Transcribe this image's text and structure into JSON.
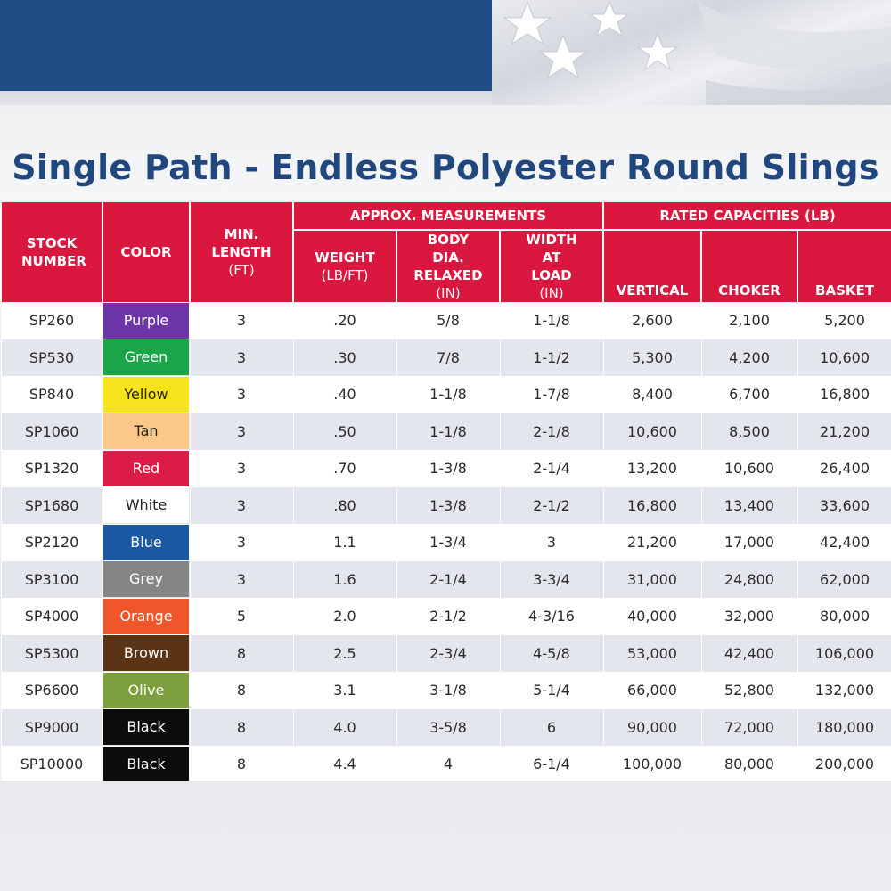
{
  "title": "Single Path - Endless Polyester Round Slings",
  "header": {
    "stock_number": "STOCK NUMBER",
    "color": "COLOR",
    "min_length": "MIN. LENGTH",
    "min_length_unit": "(FT)",
    "approx_group": "APPROX. MEASUREMENTS",
    "weight": "WEIGHT",
    "weight_unit": "(LB/FT)",
    "body_dia": "BODY DIA. RELAXED",
    "body_dia_unit": "(IN)",
    "width_load": "WIDTH AT LOAD",
    "width_load_unit": "(IN)",
    "rated_group": "RATED CAPACITIES (LB)",
    "vertical": "VERTICAL",
    "choker": "CHOKER",
    "basket": "BASKET"
  },
  "rows": [
    {
      "stock": "SP260",
      "color": "Purple",
      "swatch": "#6c35a8",
      "text_color": "#ffffff",
      "length": "3",
      "weight": ".20",
      "body": "5/8",
      "width": "1-1/8",
      "vertical": "2,600",
      "choker": "2,100",
      "basket": "5,200"
    },
    {
      "stock": "SP530",
      "color": "Green",
      "swatch": "#1aa648",
      "text_color": "#ffffff",
      "length": "3",
      "weight": ".30",
      "body": "7/8",
      "width": "1-1/2",
      "vertical": "5,300",
      "choker": "4,200",
      "basket": "10,600"
    },
    {
      "stock": "SP840",
      "color": "Yellow",
      "swatch": "#f7e31b",
      "text_color": "#222222",
      "length": "3",
      "weight": ".40",
      "body": "1-1/8",
      "width": "1-7/8",
      "vertical": "8,400",
      "choker": "6,700",
      "basket": "16,800"
    },
    {
      "stock": "SP1060",
      "color": "Tan",
      "swatch": "#fbc88a",
      "text_color": "#222222",
      "length": "3",
      "weight": ".50",
      "body": "1-1/8",
      "width": "2-1/8",
      "vertical": "10,600",
      "choker": "8,500",
      "basket": "21,200"
    },
    {
      "stock": "SP1320",
      "color": "Red",
      "swatch": "#dc1c46",
      "text_color": "#ffffff",
      "length": "3",
      "weight": ".70",
      "body": "1-3/8",
      "width": "2-1/4",
      "vertical": "13,200",
      "choker": "10,600",
      "basket": "26,400"
    },
    {
      "stock": "SP1680",
      "color": "White",
      "swatch": "#ffffff",
      "text_color": "#222222",
      "length": "3",
      "weight": ".80",
      "body": "1-3/8",
      "width": "2-1/2",
      "vertical": "16,800",
      "choker": "13,400",
      "basket": "33,600"
    },
    {
      "stock": "SP2120",
      "color": "Blue",
      "swatch": "#1b5aa2",
      "text_color": "#ffffff",
      "length": "3",
      "weight": "1.1",
      "body": "1-3/4",
      "width": "3",
      "vertical": "21,200",
      "choker": "17,000",
      "basket": "42,400"
    },
    {
      "stock": "SP3100",
      "color": "Grey",
      "swatch": "#858585",
      "text_color": "#ffffff",
      "length": "3",
      "weight": "1.6",
      "body": "2-1/4",
      "width": "3-3/4",
      "vertical": "31,000",
      "choker": "24,800",
      "basket": "62,000"
    },
    {
      "stock": "SP4000",
      "color": "Orange",
      "swatch": "#f0562a",
      "text_color": "#ffffff",
      "length": "5",
      "weight": "2.0",
      "body": "2-1/2",
      "width": "4-3/16",
      "vertical": "40,000",
      "choker": "32,000",
      "basket": "80,000"
    },
    {
      "stock": "SP5300",
      "color": "Brown",
      "swatch": "#5b3416",
      "text_color": "#ffffff",
      "length": "8",
      "weight": "2.5",
      "body": "2-3/4",
      "width": "4-5/8",
      "vertical": "53,000",
      "choker": "42,400",
      "basket": "106,000"
    },
    {
      "stock": "SP6600",
      "color": "Olive",
      "swatch": "#7c9e3c",
      "text_color": "#ffffff",
      "length": "8",
      "weight": "3.1",
      "body": "3-1/8",
      "width": "5-1/4",
      "vertical": "66,000",
      "choker": "52,800",
      "basket": "132,000"
    },
    {
      "stock": "SP9000",
      "color": "Black",
      "swatch": "#0c0c0c",
      "text_color": "#ffffff",
      "length": "8",
      "weight": "4.0",
      "body": "3-5/8",
      "width": "6",
      "vertical": "90,000",
      "choker": "72,000",
      "basket": "180,000"
    },
    {
      "stock": "SP10000",
      "color": "Black",
      "swatch": "#0c0c0c",
      "text_color": "#ffffff",
      "length": "8",
      "weight": "4.4",
      "body": "4",
      "width": "6-1/4",
      "vertical": "100,000",
      "choker": "80,000",
      "basket": "200,000"
    }
  ]
}
